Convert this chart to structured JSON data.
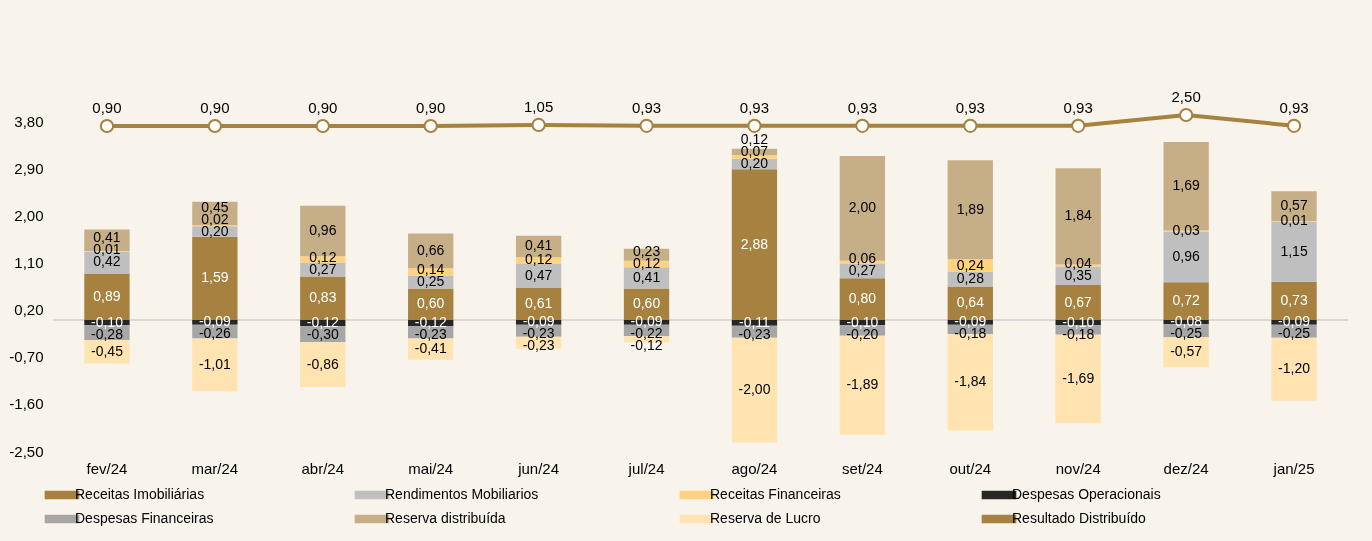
{
  "chart_data": {
    "type": "bar",
    "stacked": true,
    "categories": [
      "fev/24",
      "mar/24",
      "abr/24",
      "mai/24",
      "jun/24",
      "jul/24",
      "ago/24",
      "set/24",
      "out/24",
      "nov/24",
      "dez/24",
      "jan/25"
    ],
    "series": [
      {
        "name": "Receitas Imobiliárias",
        "color": "#a6813f",
        "values": [
          0.89,
          1.59,
          0.83,
          0.6,
          0.61,
          0.6,
          2.88,
          0.8,
          0.64,
          0.67,
          0.72,
          0.73
        ],
        "value_labels": [
          "0,89",
          "1,59",
          "0,83",
          "0,60",
          "0,61",
          "0,60",
          "2,88",
          "0,80",
          "0,64",
          "0,67",
          "0,72",
          "0,73"
        ]
      },
      {
        "name": "Rendimentos Mobiliarios",
        "color": "#bfbfbf",
        "values": [
          0.42,
          0.2,
          0.27,
          0.25,
          0.47,
          0.41,
          0.2,
          0.27,
          0.28,
          0.35,
          0.96,
          1.15
        ],
        "value_labels": [
          "0,42",
          "0,20",
          "0,27",
          "0,25",
          "0,47",
          "0,41",
          "0,20",
          "0,27",
          "0,28",
          "0,35",
          "0,96",
          "1,15"
        ]
      },
      {
        "name": "Receitas Financeiras",
        "color": "#ffd281",
        "values": [
          0.01,
          0.02,
          0.12,
          0.14,
          0.12,
          0.12,
          0.07,
          0.06,
          0.24,
          0.04,
          0.03,
          0.01
        ],
        "value_labels": [
          "0,01",
          "0,02",
          "0,12",
          "0,14",
          "0,12",
          "0,12",
          "0,07",
          "0,06",
          "0,24",
          "0,04",
          "0,03",
          "0,01"
        ]
      },
      {
        "name": "Despesas Operacionais",
        "color": "#262626",
        "values": [
          -0.1,
          -0.09,
          -0.12,
          -0.12,
          -0.09,
          -0.09,
          -0.11,
          -0.1,
          -0.09,
          -0.1,
          -0.08,
          -0.09
        ],
        "value_labels": [
          "-0,10",
          "-0,09",
          "-0,12",
          "-0,12",
          "-0,09",
          "-0,09",
          "-0,11",
          "-0,10",
          "-0,09",
          "-0,10",
          "-0,08",
          "-0,09"
        ]
      },
      {
        "name": "Despesas Financeiras",
        "color": "#a6a6a6",
        "values": [
          -0.28,
          -0.26,
          -0.3,
          -0.23,
          -0.23,
          -0.22,
          -0.23,
          -0.2,
          -0.18,
          -0.18,
          -0.25,
          -0.25
        ],
        "value_labels": [
          "-0,28",
          "-0,26",
          "-0,30",
          "-0,23",
          "-0,23",
          "-0,22",
          "-0,23",
          "-0,20",
          "-0,18",
          "-0,18",
          "-0,25",
          "-0,25"
        ]
      },
      {
        "name": "Reserva distribuída",
        "color": "#c6ae87",
        "values": [
          0.41,
          0.45,
          0.96,
          0.66,
          0.41,
          0.23,
          0.12,
          2.0,
          1.89,
          1.84,
          1.69,
          0.57
        ],
        "value_labels": [
          "0,41",
          "0,45",
          "0,96",
          "0,66",
          "0,41",
          "0,23",
          "0,12",
          "2,00",
          "1,89",
          "1,84",
          "1,69",
          "0,57"
        ]
      },
      {
        "name": "Reserva de Lucro",
        "color": "#ffe3b0",
        "values": [
          -0.45,
          -1.01,
          -0.86,
          -0.41,
          -0.23,
          -0.12,
          -2.0,
          -1.89,
          -1.84,
          -1.69,
          -0.57,
          -1.2
        ],
        "value_labels": [
          "-0,45",
          "-1,01",
          "-0,86",
          "-0,41",
          "-0,23",
          "-0,12",
          "-2,00",
          "-1,89",
          "-1,84",
          "-1,69",
          "-0,57",
          "-1,20"
        ]
      },
      {
        "name": "Resultado Distribuído",
        "type": "line",
        "axis": "y2",
        "color": "#a6813f",
        "marker": "circle",
        "line_style": "solid",
        "values": [
          0.9,
          0.9,
          0.9,
          0.9,
          1.05,
          0.93,
          0.93,
          0.93,
          0.93,
          0.93,
          2.5,
          0.93
        ],
        "value_labels": [
          "0,90",
          "0,90",
          "0,90",
          "0,90",
          "1,05",
          "0,93",
          "0,93",
          "0,93",
          "0,93",
          "0,93",
          "2,50",
          "0,93"
        ]
      }
    ],
    "ylim": [
      -2.5,
      3.8
    ],
    "yticks": [
      {
        "value": 3.8,
        "label": "3,80"
      },
      {
        "value": 2.9,
        "label": "2,90"
      },
      {
        "value": 2.0,
        "label": "2,00"
      },
      {
        "value": 1.1,
        "label": "1,10"
      },
      {
        "value": 0.2,
        "label": "0,20"
      },
      {
        "value": -0.7,
        "label": "-0,70"
      },
      {
        "value": -1.6,
        "label": "-1,60"
      },
      {
        "value": -2.5,
        "label": "-2,50"
      }
    ],
    "tick_labels": "xy",
    "grid": false,
    "legend": "bottom"
  }
}
